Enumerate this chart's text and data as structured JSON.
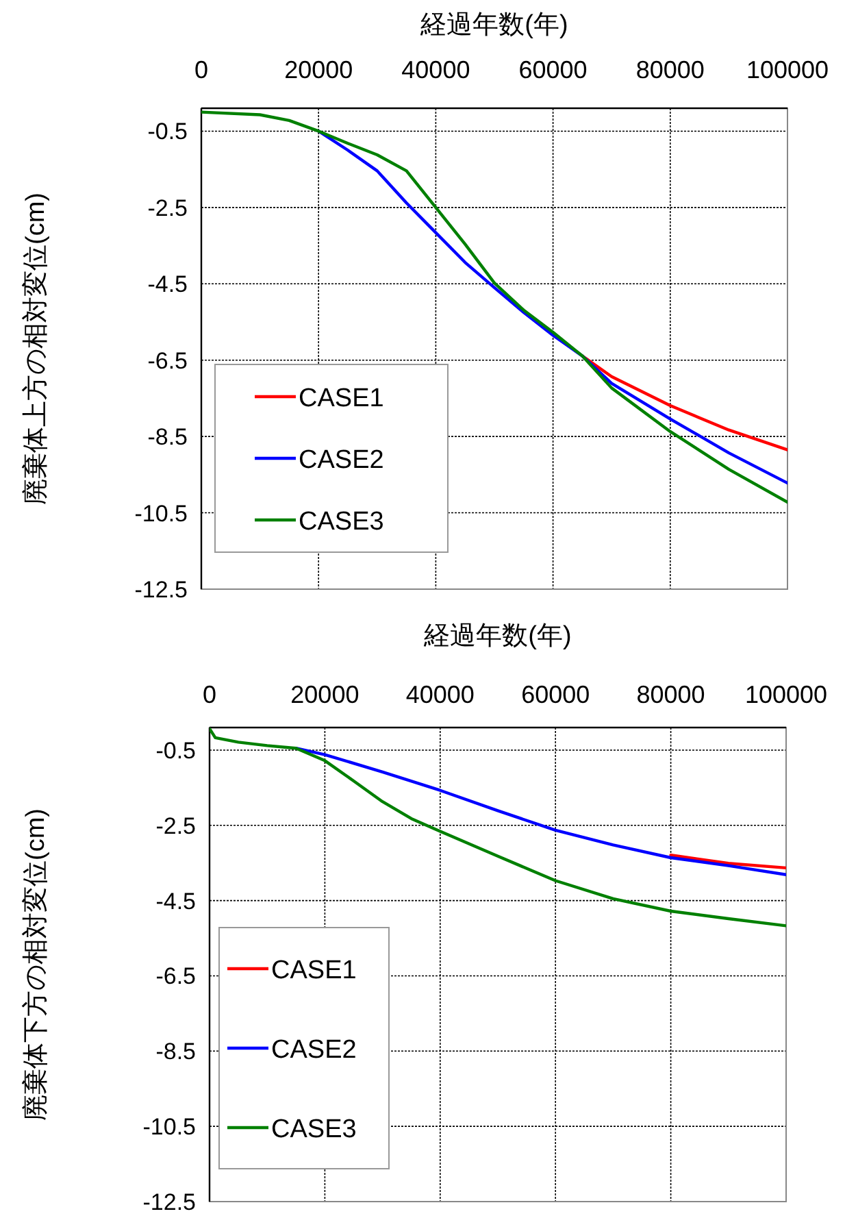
{
  "chart_data": [
    {
      "type": "line",
      "xlabel": "経過年数(年)",
      "ylabel": "廃棄体上方の相対変位(cm)",
      "xlim": [
        0,
        100000
      ],
      "xticks": [
        0,
        20000,
        40000,
        60000,
        80000,
        100000
      ],
      "ylim": [
        -12.5,
        0.1
      ],
      "yticks": [
        -0.5,
        -2.5,
        -4.5,
        -6.5,
        -8.5,
        -10.5,
        -12.5
      ],
      "grid": true,
      "legend": "bottom left",
      "series": [
        {
          "name": "CASE1",
          "color": "#ff0000",
          "x": [
            65000,
            70000,
            80000,
            90000,
            100000
          ],
          "values": [
            -6.39,
            -6.93,
            -7.69,
            -8.33,
            -8.85
          ]
        },
        {
          "name": "CASE2",
          "color": "#0000ff",
          "x": [
            20000,
            25000,
            30000,
            35000,
            40000,
            45000,
            50000,
            55000,
            60000,
            65000,
            70000,
            80000,
            90000,
            100000
          ],
          "values": [
            -0.5,
            -1.0,
            -1.54,
            -2.38,
            -3.16,
            -3.94,
            -4.6,
            -5.25,
            -5.85,
            -6.39,
            -7.11,
            -8.04,
            -8.93,
            -9.72
          ]
        },
        {
          "name": "CASE3",
          "color": "#008000",
          "x": [
            0,
            10000,
            15000,
            20000,
            25000,
            30000,
            35000,
            40000,
            45000,
            50000,
            55000,
            60000,
            65000,
            70000,
            80000,
            90000,
            100000
          ],
          "values": [
            0.0,
            -0.07,
            -0.22,
            -0.5,
            -0.82,
            -1.12,
            -1.54,
            -2.5,
            -3.46,
            -4.48,
            -5.19,
            -5.77,
            -6.39,
            -7.23,
            -8.37,
            -9.36,
            -10.22
          ]
        }
      ]
    },
    {
      "type": "line",
      "xlabel": "経過年数(年)",
      "ylabel": "廃棄体下方の相対変位(cm)",
      "xlim": [
        0,
        100000
      ],
      "xticks": [
        0,
        20000,
        40000,
        60000,
        80000,
        100000
      ],
      "ylim": [
        -12.5,
        0.1
      ],
      "yticks": [
        -0.5,
        -2.5,
        -4.5,
        -6.5,
        -8.5,
        -10.5,
        -12.5
      ],
      "grid": true,
      "legend": "bottom left",
      "series": [
        {
          "name": "CASE1",
          "color": "#ff0000",
          "x": [
            80000,
            90000,
            100000
          ],
          "values": [
            -3.29,
            -3.51,
            -3.63
          ]
        },
        {
          "name": "CASE2",
          "color": "#0000ff",
          "x": [
            15000,
            20000,
            30000,
            40000,
            50000,
            60000,
            70000,
            80000,
            90000,
            100000
          ],
          "values": [
            -0.45,
            -0.62,
            -1.08,
            -1.57,
            -2.11,
            -2.63,
            -3.02,
            -3.36,
            -3.57,
            -3.81
          ]
        },
        {
          "name": "CASE3",
          "color": "#008000",
          "x": [
            0,
            1000,
            5000,
            10000,
            15000,
            20000,
            25000,
            30000,
            35000,
            40000,
            50000,
            60000,
            70000,
            80000,
            90000,
            100000
          ],
          "values": [
            0.07,
            -0.17,
            -0.29,
            -0.38,
            -0.45,
            -0.78,
            -1.32,
            -1.87,
            -2.32,
            -2.66,
            -3.32,
            -3.97,
            -4.45,
            -4.78,
            -4.98,
            -5.17
          ]
        }
      ]
    }
  ]
}
